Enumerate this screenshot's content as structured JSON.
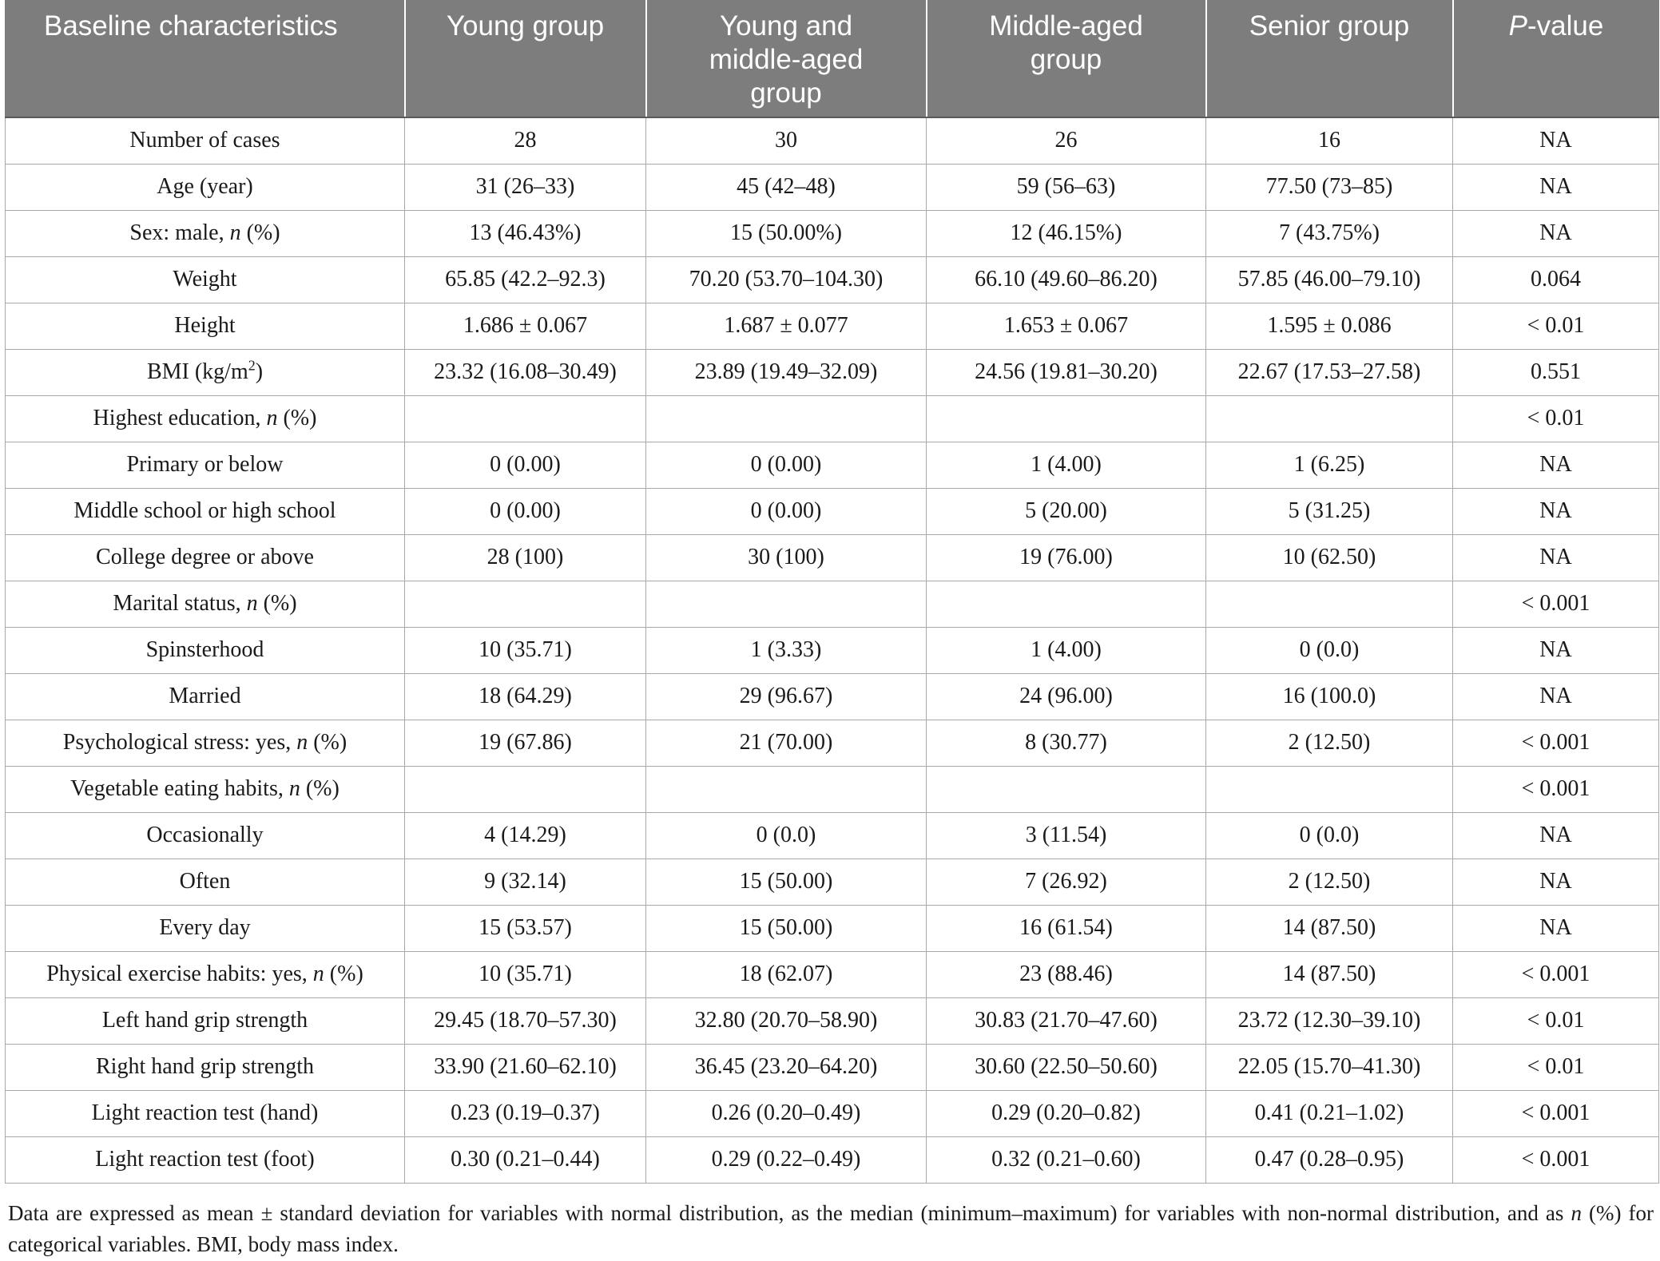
{
  "table": {
    "headers": [
      "Baseline characteristics",
      "Young group",
      "Young and middle-aged group",
      "Middle-aged group",
      "Senior group",
      "P-value"
    ],
    "rows": [
      {
        "label": "Number of cases",
        "values": [
          "28",
          "30",
          "26",
          "16",
          "NA"
        ]
      },
      {
        "label": "Age (year)",
        "values": [
          "31 (26–33)",
          "45 (42–48)",
          "59 (56–63)",
          "77.50 (73–85)",
          "NA"
        ]
      },
      {
        "label": "Sex: male, n (%)",
        "values": [
          "13 (46.43%)",
          "15 (50.00%)",
          "12 (46.15%)",
          "7 (43.75%)",
          "NA"
        ]
      },
      {
        "label": "Weight",
        "values": [
          "65.85 (42.2–92.3)",
          "70.20 (53.70–104.30)",
          "66.10 (49.60–86.20)",
          "57.85 (46.00–79.10)",
          "0.064"
        ]
      },
      {
        "label": "Height",
        "values": [
          "1.686 ± 0.067",
          "1.687 ± 0.077",
          "1.653 ± 0.067",
          "1.595 ± 0.086",
          "< 0.01"
        ]
      },
      {
        "label": "BMI (kg/m2)",
        "values": [
          "23.32 (16.08–30.49)",
          "23.89 (19.49–32.09)",
          "24.56 (19.81–30.20)",
          "22.67 (17.53–27.58)",
          "0.551"
        ]
      },
      {
        "label": "Highest education, n (%)",
        "values": [
          "",
          "",
          "",
          "",
          "< 0.01"
        ]
      },
      {
        "label": "Primary or below",
        "values": [
          "0 (0.00)",
          "0 (0.00)",
          "1 (4.00)",
          "1 (6.25)",
          "NA"
        ]
      },
      {
        "label": "Middle school or high school",
        "values": [
          "0 (0.00)",
          "0 (0.00)",
          "5 (20.00)",
          "5 (31.25)",
          "NA"
        ]
      },
      {
        "label": "College degree or above",
        "values": [
          "28 (100)",
          "30 (100)",
          "19 (76.00)",
          "10 (62.50)",
          "NA"
        ]
      },
      {
        "label": "Marital status, n (%)",
        "values": [
          "",
          "",
          "",
          "",
          "< 0.001"
        ]
      },
      {
        "label": "Spinsterhood",
        "values": [
          "10 (35.71)",
          "1 (3.33)",
          "1 (4.00)",
          "0 (0.0)",
          "NA"
        ]
      },
      {
        "label": "Married",
        "values": [
          "18 (64.29)",
          "29 (96.67)",
          "24 (96.00)",
          "16 (100.0)",
          "NA"
        ]
      },
      {
        "label": "Psychological stress: yes, n (%)",
        "values": [
          "19 (67.86)",
          "21 (70.00)",
          "8 (30.77)",
          "2 (12.50)",
          "< 0.001"
        ]
      },
      {
        "label": "Vegetable eating habits, n (%)",
        "values": [
          "",
          "",
          "",
          "",
          "< 0.001"
        ]
      },
      {
        "label": "Occasionally",
        "values": [
          "4 (14.29)",
          "0 (0.0)",
          "3 (11.54)",
          "0 (0.0)",
          "NA"
        ]
      },
      {
        "label": "Often",
        "values": [
          "9 (32.14)",
          "15 (50.00)",
          "7 (26.92)",
          "2 (12.50)",
          "NA"
        ]
      },
      {
        "label": "Every day",
        "values": [
          "15 (53.57)",
          "15 (50.00)",
          "16 (61.54)",
          "14 (87.50)",
          "NA"
        ]
      },
      {
        "label": "Physical exercise habits: yes, n (%)",
        "values": [
          "10 (35.71)",
          "18 (62.07)",
          "23 (88.46)",
          "14 (87.50)",
          "< 0.001"
        ]
      },
      {
        "label": "Left hand grip strength",
        "values": [
          "29.45 (18.70–57.30)",
          "32.80 (20.70–58.90)",
          "30.83 (21.70–47.60)",
          "23.72 (12.30–39.10)",
          "< 0.01"
        ]
      },
      {
        "label": "Right hand grip strength",
        "values": [
          "33.90 (21.60–62.10)",
          "36.45 (23.20–64.20)",
          "30.60 (22.50–50.60)",
          "22.05 (15.70–41.30)",
          "< 0.01"
        ]
      },
      {
        "label": "Light reaction test (hand)",
        "values": [
          "0.23 (0.19–0.37)",
          "0.26 (0.20–0.49)",
          "0.29 (0.20–0.82)",
          "0.41 (0.21–1.02)",
          "< 0.001"
        ]
      },
      {
        "label": "Light reaction test (foot)",
        "values": [
          "0.30 (0.21–0.44)",
          "0.29 (0.22–0.49)",
          "0.32 (0.21–0.60)",
          "0.47 (0.28–0.95)",
          "< 0.001"
        ]
      }
    ]
  },
  "footnote": "Data are expressed as mean ± standard deviation for variables with normal distribution, as the median (minimum–maximum) for variables with non-normal distribution, and as n (%) for categorical variables. BMI, body mass index."
}
